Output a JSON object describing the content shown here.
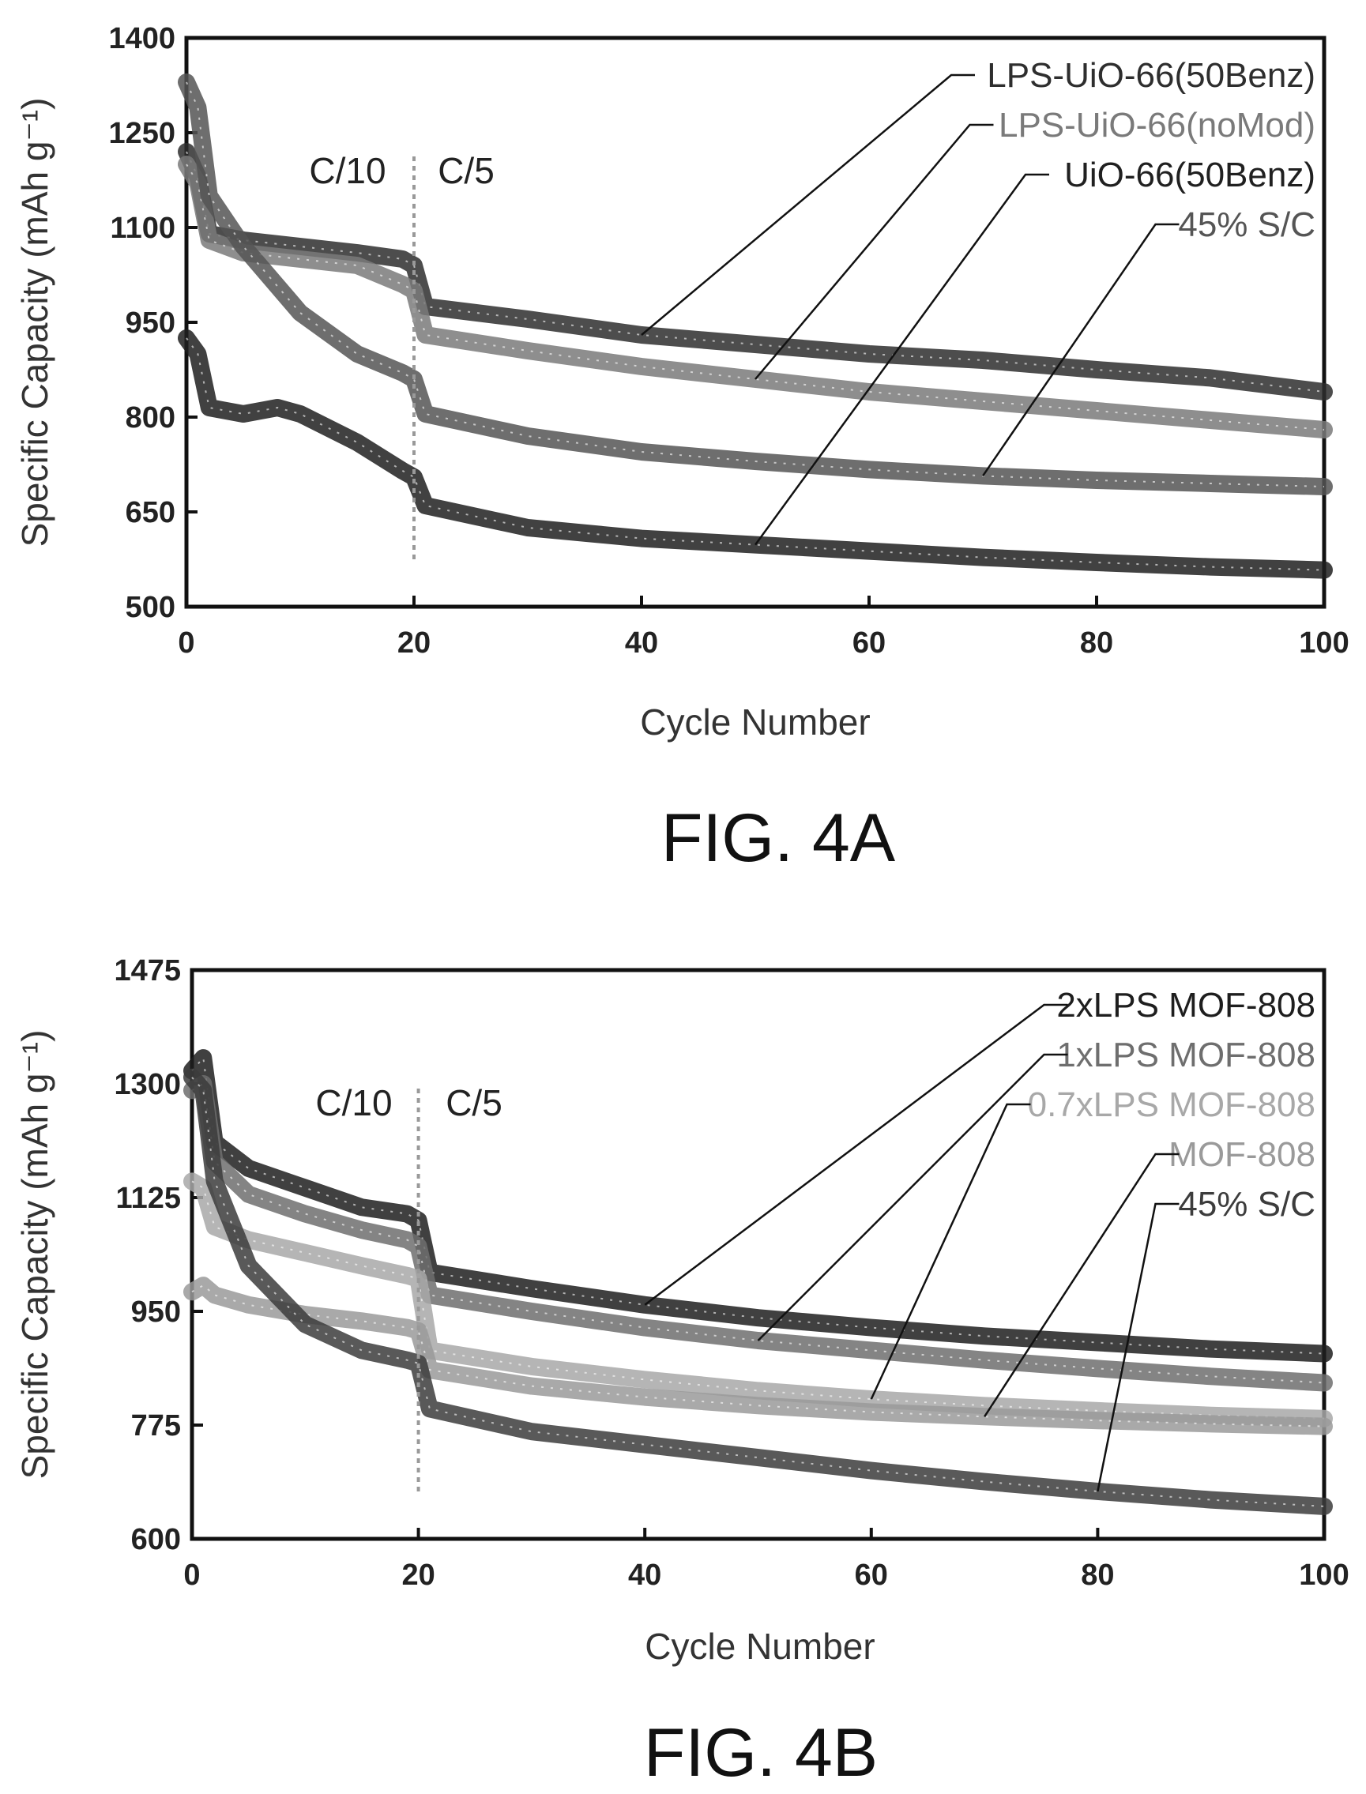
{
  "chart_data": [
    {
      "type": "line",
      "figure_label": "FIG. 4A",
      "xlabel": "Cycle Number",
      "ylabel": "Specific Capacity (mAh g⁻¹)",
      "xlim": [
        0,
        100
      ],
      "ylim": [
        500,
        1400
      ],
      "xticks": [
        0,
        20,
        40,
        60,
        80,
        100
      ],
      "yticks": [
        500,
        650,
        800,
        950,
        1100,
        1250,
        1400
      ],
      "rate_labels": [
        "C/10",
        "C/5"
      ],
      "rate_change_cycle": 20,
      "grid": false,
      "legend": "top-right",
      "series": [
        {
          "name": "LPS-UiO-66(50Benz)",
          "color": "#2e2e2e",
          "x": [
            0,
            1,
            2,
            5,
            10,
            15,
            19,
            20,
            21,
            30,
            40,
            50,
            60,
            70,
            80,
            90,
            100
          ],
          "y": [
            1220,
            1180,
            1090,
            1080,
            1070,
            1060,
            1050,
            1040,
            975,
            955,
            930,
            915,
            900,
            890,
            875,
            862,
            840
          ]
        },
        {
          "name": "LPS-UiO-66(noMod)",
          "color": "#7a7a7a",
          "x": [
            0,
            1,
            2,
            5,
            10,
            15,
            19,
            20,
            21,
            30,
            40,
            50,
            60,
            70,
            80,
            90,
            100
          ],
          "y": [
            1200,
            1170,
            1080,
            1060,
            1050,
            1040,
            1010,
            1000,
            930,
            905,
            880,
            860,
            840,
            825,
            810,
            795,
            780
          ]
        },
        {
          "name": "UiO-66(50Benz)",
          "color": "#202020",
          "x": [
            0,
            1,
            2,
            5,
            8,
            10,
            15,
            19,
            20,
            21,
            30,
            40,
            50,
            60,
            70,
            80,
            90,
            100
          ],
          "y": [
            925,
            900,
            815,
            805,
            815,
            805,
            760,
            715,
            705,
            660,
            625,
            608,
            598,
            588,
            578,
            570,
            563,
            558
          ]
        },
        {
          "name": "45% S/C",
          "color": "#555555",
          "x": [
            0,
            1,
            2,
            5,
            10,
            15,
            19,
            20,
            21,
            30,
            40,
            50,
            60,
            70,
            80,
            90,
            100
          ],
          "y": [
            1330,
            1290,
            1150,
            1070,
            965,
            900,
            870,
            860,
            805,
            770,
            745,
            730,
            717,
            707,
            700,
            695,
            690
          ]
        }
      ]
    },
    {
      "type": "line",
      "figure_label": "FIG. 4B",
      "xlabel": "Cycle Number",
      "ylabel": "Specific Capacity (mAh g⁻¹)",
      "xlim": [
        0,
        100
      ],
      "ylim": [
        600,
        1475
      ],
      "xticks": [
        0,
        20,
        40,
        60,
        80,
        100
      ],
      "yticks": [
        600,
        775,
        950,
        1125,
        1300,
        1475
      ],
      "rate_labels": [
        "C/10",
        "C/5"
      ],
      "rate_change_cycle": 20,
      "grid": false,
      "legend": "top-right",
      "series": [
        {
          "name": "2xLPS MOF-808",
          "color": "#1e1e1e",
          "x": [
            0,
            1,
            2,
            5,
            10,
            15,
            19,
            20,
            21,
            30,
            40,
            50,
            60,
            70,
            80,
            90,
            100
          ],
          "y": [
            1320,
            1340,
            1210,
            1170,
            1140,
            1110,
            1100,
            1090,
            1010,
            985,
            960,
            940,
            925,
            912,
            902,
            892,
            885
          ]
        },
        {
          "name": "1xLPS MOF-808",
          "color": "#6e6e6e",
          "x": [
            0,
            1,
            2,
            5,
            10,
            15,
            19,
            20,
            21,
            30,
            40,
            50,
            60,
            70,
            80,
            90,
            100
          ],
          "y": [
            1290,
            1300,
            1180,
            1130,
            1100,
            1075,
            1060,
            1050,
            975,
            950,
            925,
            905,
            890,
            875,
            862,
            850,
            840
          ]
        },
        {
          "name": "0.7xLPS MOF-808",
          "color": "#a8a8a8",
          "x": [
            0,
            1,
            2,
            5,
            10,
            15,
            19,
            20,
            21,
            30,
            40,
            50,
            60,
            70,
            80,
            90,
            100
          ],
          "y": [
            1150,
            1140,
            1080,
            1060,
            1040,
            1020,
            1005,
            1000,
            890,
            865,
            845,
            828,
            815,
            805,
            797,
            790,
            785
          ]
        },
        {
          "name": "MOF-808",
          "color": "#9a9a9a",
          "x": [
            0,
            1,
            2,
            5,
            10,
            15,
            19,
            20,
            21,
            30,
            40,
            50,
            60,
            70,
            80,
            90,
            100
          ],
          "y": [
            980,
            990,
            975,
            960,
            945,
            935,
            925,
            920,
            860,
            835,
            818,
            805,
            795,
            788,
            782,
            777,
            773
          ]
        },
        {
          "name": "45% S/C",
          "color": "#3c3c3c",
          "x": [
            0,
            1,
            2,
            5,
            10,
            15,
            19,
            20,
            21,
            30,
            40,
            50,
            60,
            70,
            80,
            90,
            100
          ],
          "y": [
            1310,
            1290,
            1150,
            1020,
            930,
            890,
            875,
            870,
            800,
            765,
            745,
            725,
            705,
            688,
            673,
            660,
            650
          ]
        }
      ]
    }
  ]
}
